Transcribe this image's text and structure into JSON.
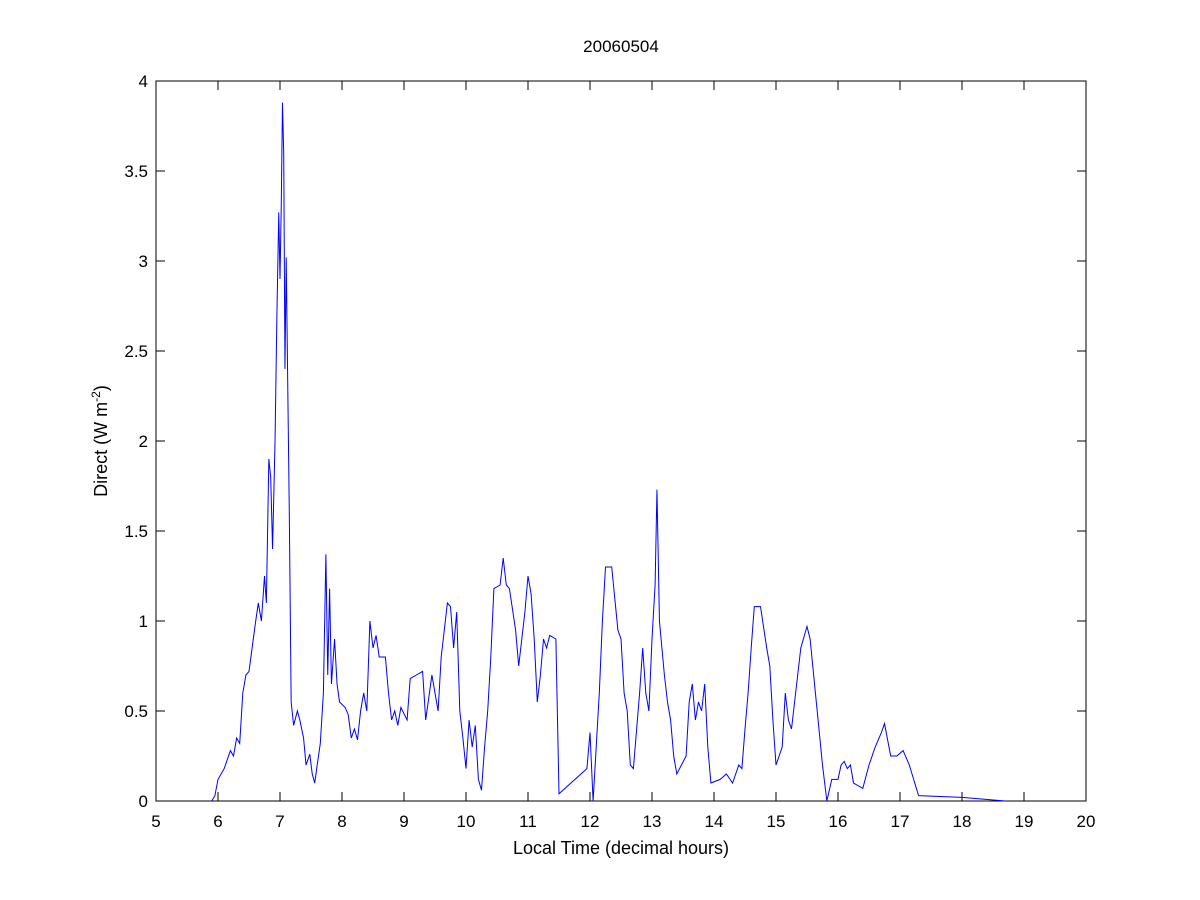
{
  "chart_data": {
    "type": "line",
    "title": "20060504",
    "xlabel": "Local Time (decimal hours)",
    "ylabel": {
      "text": "Direct (W m",
      "sup": "-2",
      "end": ")"
    },
    "xlim": [
      5,
      20
    ],
    "xticks": [
      5,
      6,
      7,
      8,
      9,
      10,
      11,
      12,
      13,
      14,
      15,
      16,
      17,
      18,
      19,
      20
    ],
    "ylim": [
      0,
      4
    ],
    "yticks": [
      0,
      0.5,
      1,
      1.5,
      2,
      2.5,
      3,
      3.5,
      4
    ],
    "x": [
      5.9,
      5.95,
      6.0,
      6.1,
      6.2,
      6.25,
      6.3,
      6.35,
      6.4,
      6.45,
      6.5,
      6.55,
      6.6,
      6.65,
      6.7,
      6.75,
      6.78,
      6.82,
      6.85,
      6.88,
      6.92,
      6.95,
      6.98,
      7.0,
      7.02,
      7.04,
      7.06,
      7.08,
      7.1,
      7.12,
      7.15,
      7.18,
      7.22,
      7.28,
      7.32,
      7.38,
      7.42,
      7.48,
      7.52,
      7.56,
      7.6,
      7.65,
      7.7,
      7.74,
      7.77,
      7.8,
      7.83,
      7.88,
      7.92,
      7.96,
      8.05,
      8.1,
      8.15,
      8.2,
      8.25,
      8.3,
      8.35,
      8.4,
      8.45,
      8.5,
      8.55,
      8.6,
      8.7,
      8.75,
      8.8,
      8.85,
      8.9,
      8.95,
      9.05,
      9.1,
      9.2,
      9.3,
      9.35,
      9.45,
      9.55,
      9.6,
      9.7,
      9.75,
      9.8,
      9.85,
      9.9,
      9.95,
      10.0,
      10.05,
      10.1,
      10.15,
      10.2,
      10.25,
      10.3,
      10.35,
      10.4,
      10.45,
      10.55,
      10.6,
      10.65,
      10.7,
      10.8,
      10.85,
      10.9,
      10.95,
      11.0,
      11.05,
      11.1,
      11.15,
      11.2,
      11.25,
      11.3,
      11.35,
      11.45,
      11.5,
      11.95,
      12.0,
      12.05,
      12.15,
      12.2,
      12.25,
      12.35,
      12.45,
      12.5,
      12.55,
      12.6,
      12.65,
      12.7,
      12.8,
      12.85,
      12.9,
      12.95,
      13.0,
      13.05,
      13.08,
      13.12,
      13.2,
      13.25,
      13.3,
      13.35,
      13.4,
      13.55,
      13.6,
      13.65,
      13.7,
      13.75,
      13.8,
      13.85,
      13.9,
      13.95,
      14.1,
      14.2,
      14.3,
      14.4,
      14.45,
      14.5,
      14.55,
      14.6,
      14.65,
      14.75,
      14.85,
      14.9,
      14.95,
      15.0,
      15.1,
      15.15,
      15.2,
      15.25,
      15.3,
      15.4,
      15.5,
      15.55,
      15.65,
      15.75,
      15.82,
      15.9,
      16.0,
      16.05,
      16.1,
      16.15,
      16.2,
      16.25,
      16.4,
      16.5,
      16.6,
      16.7,
      16.75,
      16.85,
      16.95,
      17.05,
      17.15,
      17.3,
      18.0,
      18.7
    ],
    "series": [
      {
        "color": "#0000ff",
        "values": [
          0,
          0.03,
          0.12,
          0.18,
          0.28,
          0.25,
          0.35,
          0.32,
          0.6,
          0.7,
          0.72,
          0.85,
          0.98,
          1.1,
          1.0,
          1.25,
          1.1,
          1.9,
          1.8,
          1.4,
          2.0,
          2.7,
          3.27,
          2.9,
          3.3,
          3.88,
          3.6,
          2.4,
          3.02,
          2.45,
          1.6,
          0.55,
          0.42,
          0.5,
          0.45,
          0.35,
          0.2,
          0.26,
          0.15,
          0.1,
          0.2,
          0.32,
          0.6,
          1.37,
          0.7,
          1.18,
          0.65,
          0.9,
          0.65,
          0.55,
          0.52,
          0.48,
          0.35,
          0.4,
          0.34,
          0.5,
          0.6,
          0.5,
          1.0,
          0.85,
          0.92,
          0.8,
          0.8,
          0.6,
          0.45,
          0.5,
          0.42,
          0.52,
          0.45,
          0.68,
          0.7,
          0.72,
          0.45,
          0.7,
          0.5,
          0.8,
          1.1,
          1.08,
          0.85,
          1.05,
          0.5,
          0.35,
          0.18,
          0.45,
          0.3,
          0.42,
          0.12,
          0.06,
          0.3,
          0.5,
          0.8,
          1.18,
          1.2,
          1.35,
          1.2,
          1.18,
          0.95,
          0.75,
          0.9,
          1.05,
          1.25,
          1.15,
          0.9,
          0.55,
          0.7,
          0.9,
          0.85,
          0.92,
          0.9,
          0.04,
          0.18,
          0.38,
          0,
          0.6,
          1.0,
          1.3,
          1.3,
          0.95,
          0.9,
          0.6,
          0.5,
          0.2,
          0.18,
          0.6,
          0.85,
          0.6,
          0.5,
          0.9,
          1.2,
          1.73,
          1.0,
          0.7,
          0.55,
          0.45,
          0.25,
          0.15,
          0.25,
          0.55,
          0.65,
          0.45,
          0.55,
          0.5,
          0.65,
          0.3,
          0.1,
          0.12,
          0.15,
          0.1,
          0.2,
          0.18,
          0.4,
          0.6,
          0.85,
          1.08,
          1.08,
          0.85,
          0.75,
          0.45,
          0.2,
          0.3,
          0.6,
          0.45,
          0.4,
          0.55,
          0.85,
          0.97,
          0.9,
          0.55,
          0.2,
          0,
          0.12,
          0.12,
          0.2,
          0.22,
          0.18,
          0.2,
          0.1,
          0.07,
          0.2,
          0.3,
          0.38,
          0.43,
          0.25,
          0.25,
          0.28,
          0.2,
          0.03,
          0.02,
          0
        ]
      }
    ]
  }
}
